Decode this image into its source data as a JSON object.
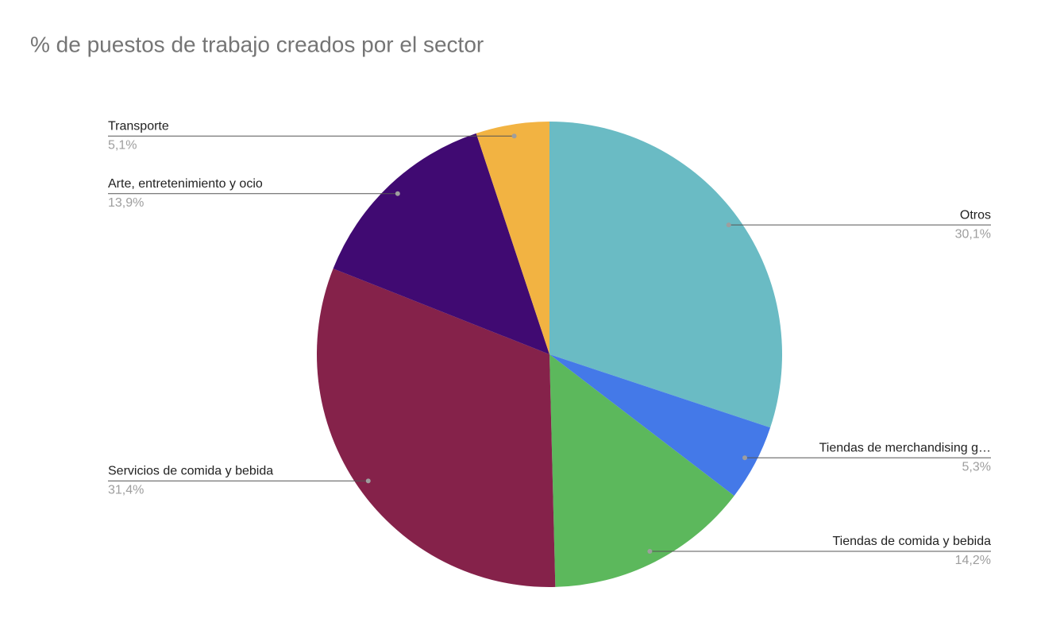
{
  "chart_data": {
    "type": "pie",
    "title": "% de puestos de trabajo creados por el sector",
    "categories": [
      "Otros",
      "Tiendas de merchandising g…",
      "Tiendas de comida y bebida",
      "Servicios de comida y bebida",
      "Arte, entretenimiento y ocio",
      "Transporte"
    ],
    "values": [
      30.1,
      5.3,
      14.2,
      31.4,
      13.9,
      5.1
    ],
    "value_labels": [
      "30,1%",
      "5,3%",
      "14,2%",
      "31,4%",
      "13,9%",
      "5,1%"
    ],
    "colors": [
      "#6abbc4",
      "#4479e8",
      "#5cb85c",
      "#85224a",
      "#400a72",
      "#f2b342"
    ]
  }
}
